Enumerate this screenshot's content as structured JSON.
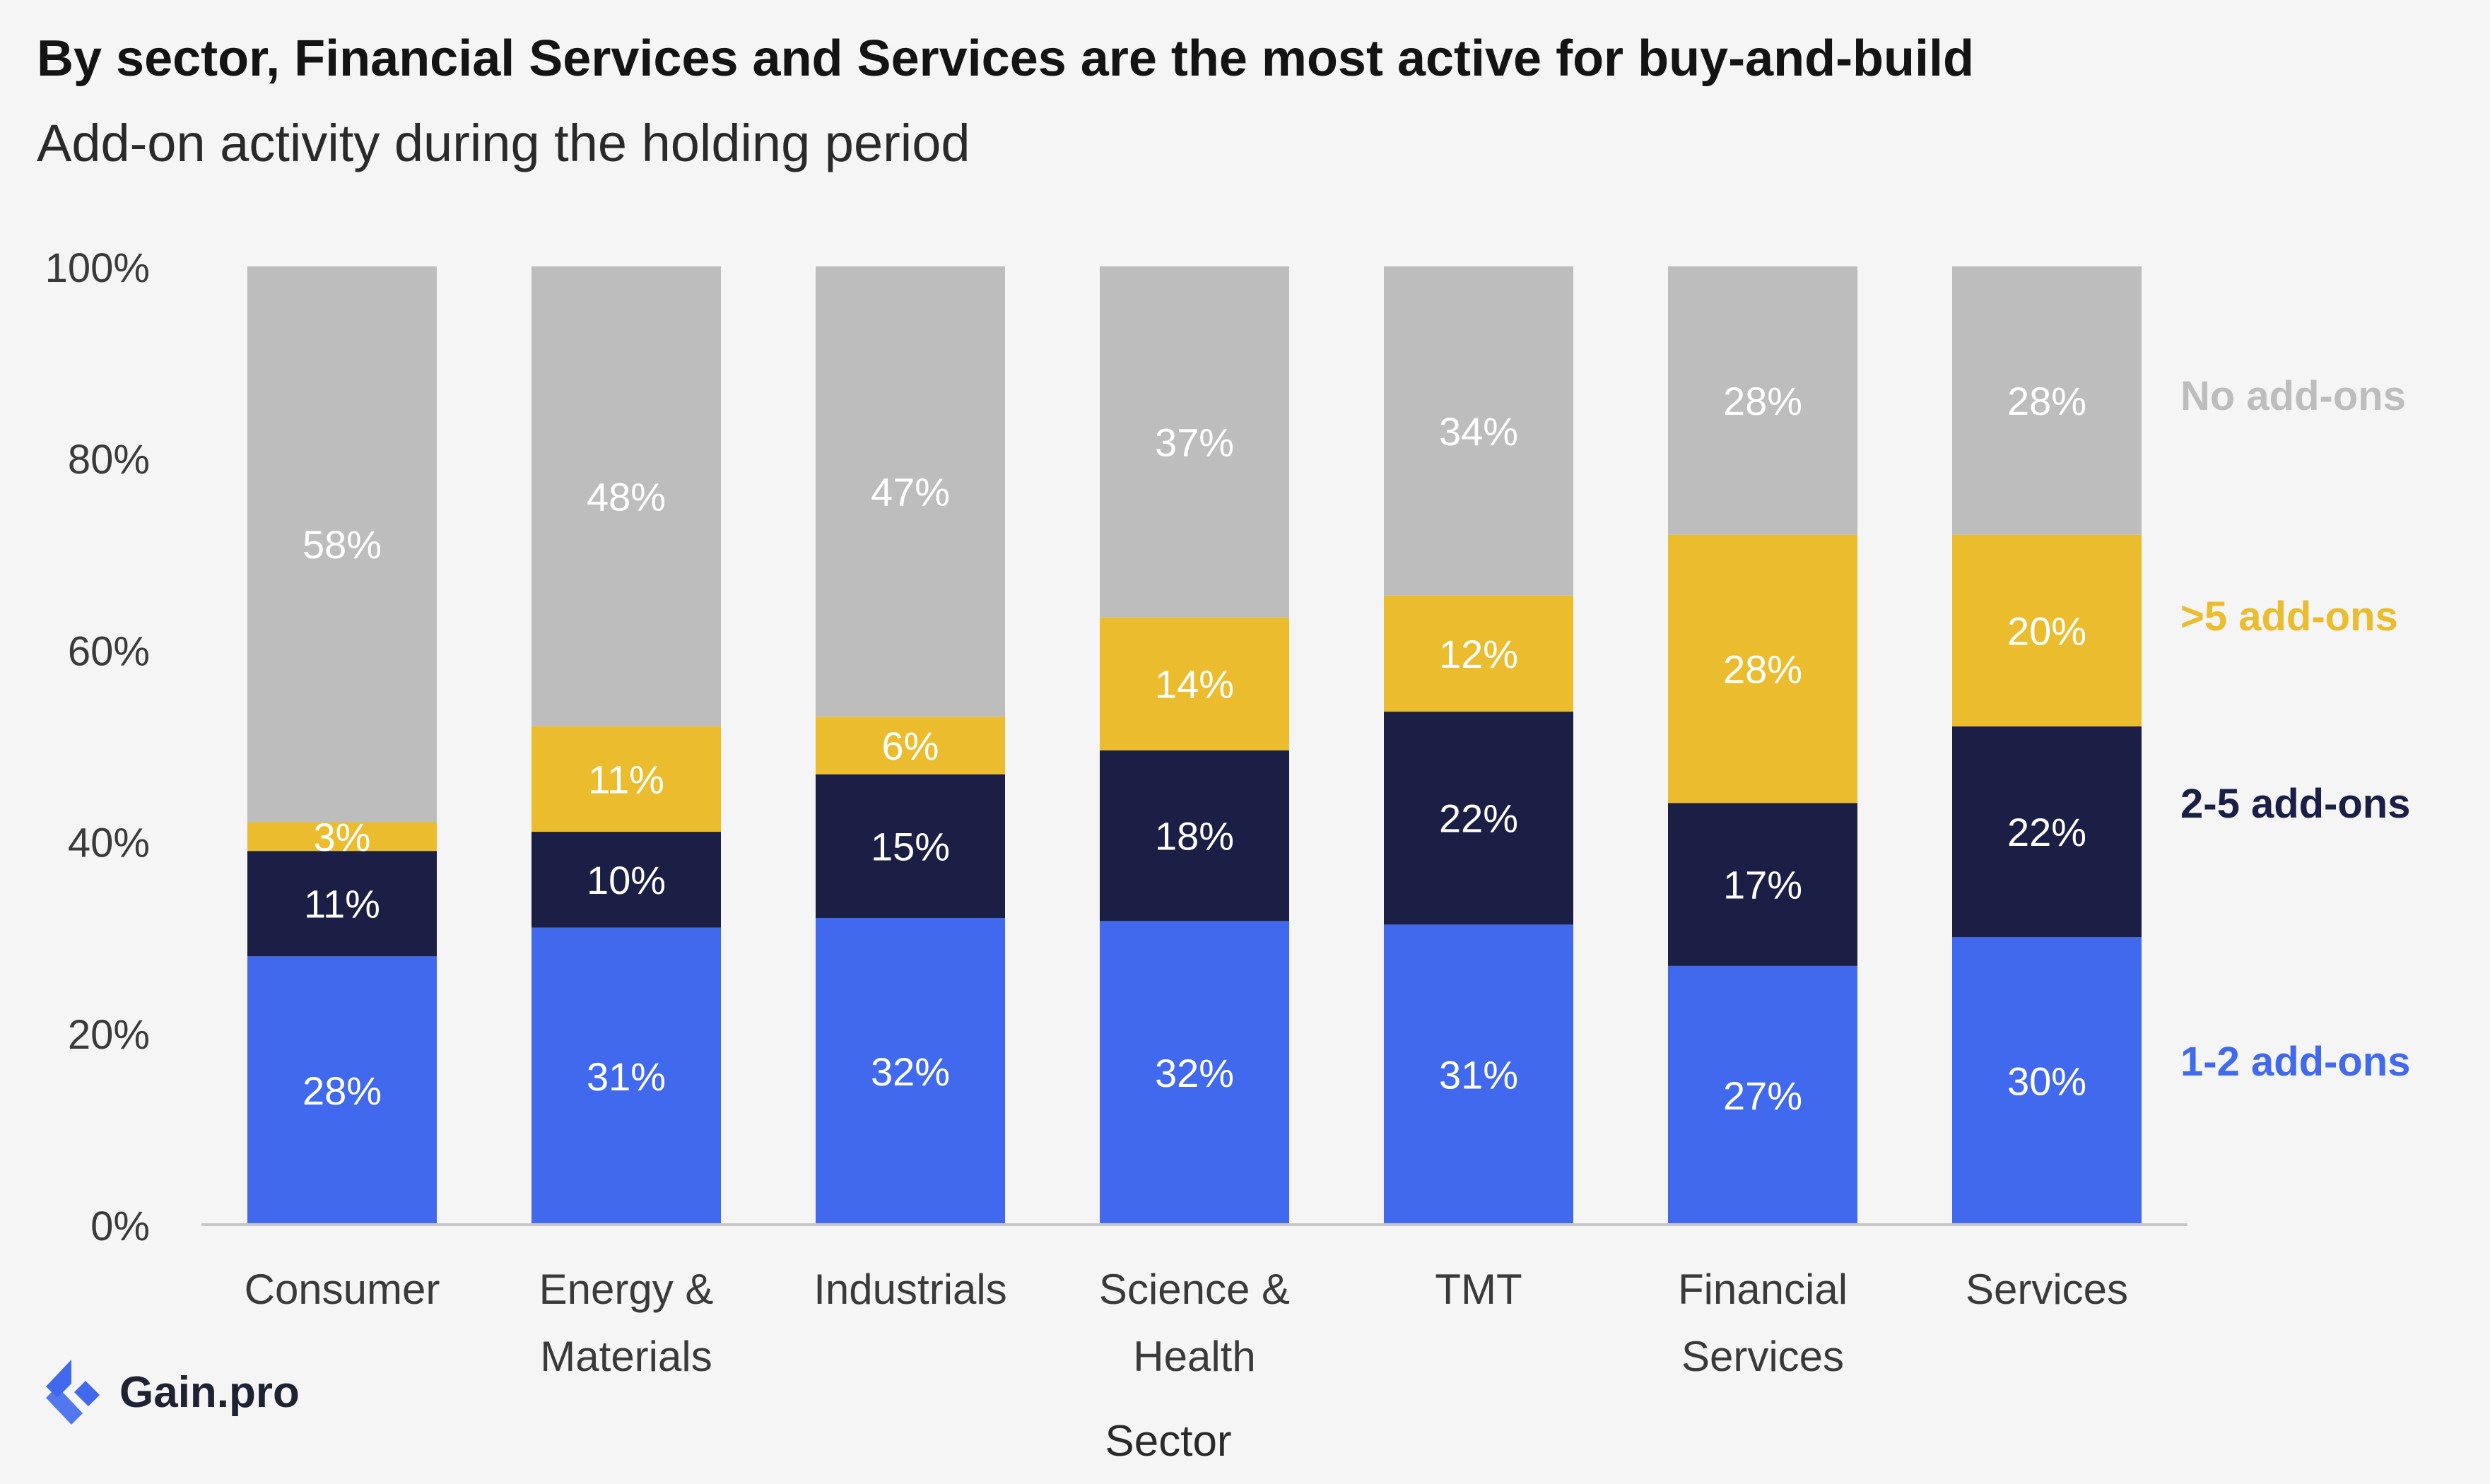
{
  "title": "By sector, Financial Services and Services are the most active for buy-and-build",
  "subtitle": "Add-on activity during the holding period",
  "logo_text": "Gain.pro",
  "colors": {
    "1-2 add-ons": "#4169ee",
    "2-5 add-ons": "#1c1f45",
    ">5 add-ons": "#ebbc2e",
    "No add-ons": "#bdbdbd"
  },
  "chart_data": {
    "type": "bar",
    "stacked": true,
    "xlabel": "Sector",
    "ylabel": "",
    "ylim": [
      0,
      100
    ],
    "yticks": [
      "0%",
      "20%",
      "40%",
      "60%",
      "80%",
      "100%"
    ],
    "categories": [
      [
        "Consumer"
      ],
      [
        "Energy &",
        "Materials"
      ],
      [
        "Industrials"
      ],
      [
        "Science &",
        "Health"
      ],
      [
        "TMT"
      ],
      [
        "Financial",
        "Services"
      ],
      [
        "Services"
      ]
    ],
    "series": [
      {
        "name": "1-2 add-ons",
        "values": [
          28,
          31,
          32,
          32,
          31,
          27,
          30
        ],
        "labels": [
          "28%",
          "31%",
          "32%",
          "32%",
          "31%",
          "27%",
          "30%"
        ]
      },
      {
        "name": "2-5 add-ons",
        "values": [
          11,
          10,
          15,
          18,
          22,
          17,
          22
        ],
        "labels": [
          "11%",
          "10%",
          "15%",
          "18%",
          "22%",
          "17%",
          "22%"
        ]
      },
      {
        "name": ">5 add-ons",
        "values": [
          3,
          11,
          6,
          14,
          12,
          28,
          20
        ],
        "labels": [
          "3%",
          "11%",
          "6%",
          "14%",
          "12%",
          "28%",
          "20%"
        ]
      },
      {
        "name": "No add-ons",
        "values": [
          58,
          48,
          47,
          37,
          34,
          28,
          28
        ],
        "labels": [
          "58%",
          "48%",
          "47%",
          "37%",
          "34%",
          "28%",
          "28%"
        ]
      }
    ],
    "legend_position": "right"
  }
}
